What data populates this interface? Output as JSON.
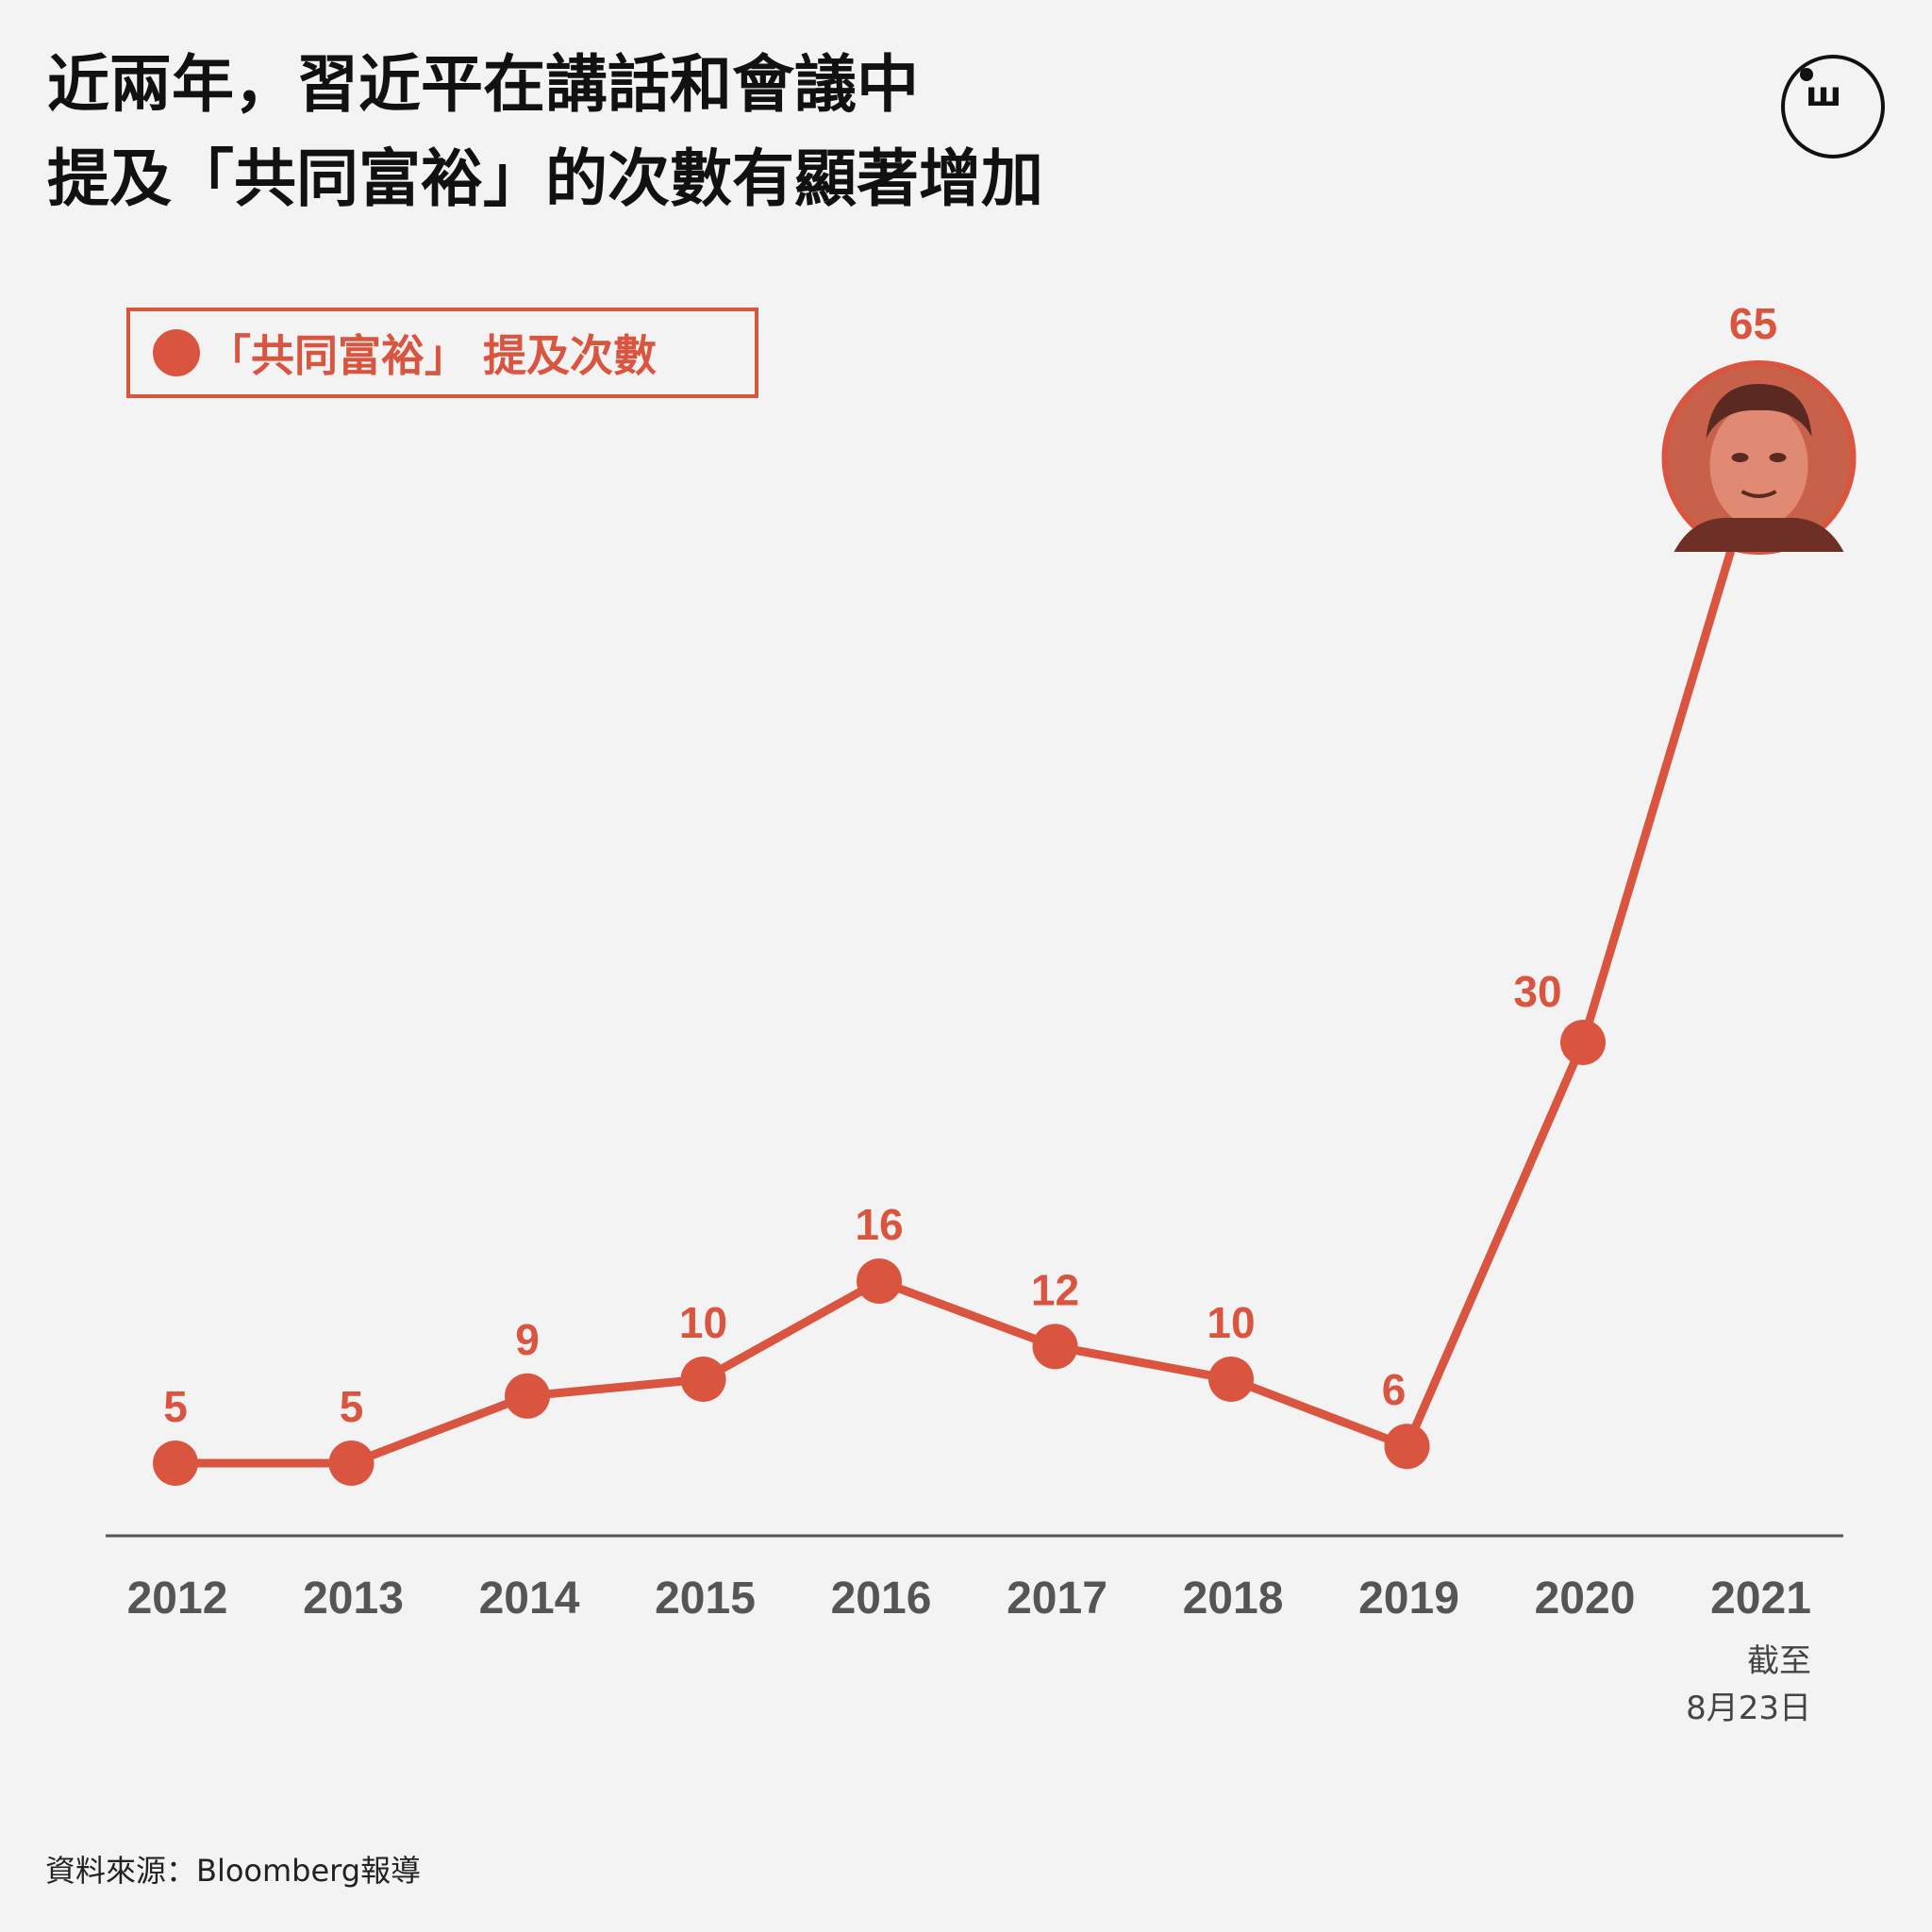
{
  "title": {
    "line1": "近兩年，習近平在講話和會議中",
    "line2": "提及「共同富裕」的次數有顯著增加"
  },
  "logo": {
    "glyph": "ш"
  },
  "legend": {
    "label": "「共同富裕」 提及次數"
  },
  "source": "資料來源：Bloomberg報導",
  "colors": {
    "accent": "#d95540",
    "axis": "#555555",
    "background": "#f3f3f3"
  },
  "chart_data": {
    "type": "line",
    "title": "近兩年，習近平在講話和會議中提及「共同富裕」的次數有顯著增加",
    "xlabel": "",
    "ylabel": "",
    "categories": [
      "2012",
      "2013",
      "2014",
      "2015",
      "2016",
      "2017",
      "2018",
      "2019",
      "2020",
      "2021"
    ],
    "series": [
      {
        "name": "「共同富裕」 提及次數",
        "values": [
          5,
          5,
          9,
          10,
          16,
          12,
          10,
          6,
          30,
          65
        ]
      }
    ],
    "ylim": [
      0,
      70
    ],
    "grid": false,
    "legend_position": "top-left",
    "annotations": {
      "last_point_note_line1": "截至",
      "last_point_note_line2": "8月23日",
      "last_point_marker": "portrait-photo"
    }
  }
}
